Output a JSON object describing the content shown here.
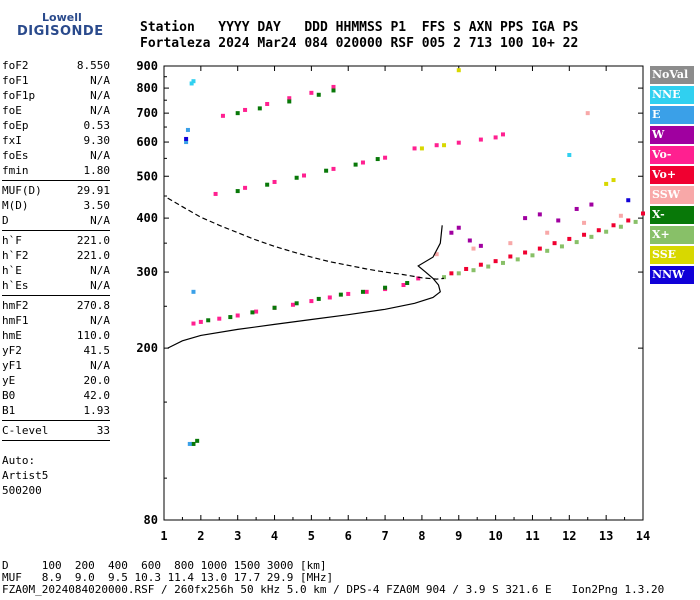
{
  "logo": {
    "line1": "Lowell",
    "line2": "DIGISONDE"
  },
  "header": {
    "labels": "Station   YYYY DAY   DDD HHMMSS P1  FFS S AXN PPS IGA PS",
    "values": "Fortaleza 2024 Mar24 084 020000 RSF 005 2 713 100 10+ 22"
  },
  "params": {
    "group1": [
      {
        "k": "foF2",
        "v": "8.550"
      },
      {
        "k": "foF1",
        "v": "N/A"
      },
      {
        "k": "foF1p",
        "v": "N/A"
      },
      {
        "k": "foE",
        "v": "N/A"
      },
      {
        "k": "foEp",
        "v": "0.53"
      },
      {
        "k": "fxI",
        "v": "9.30"
      },
      {
        "k": "foEs",
        "v": "N/A"
      },
      {
        "k": "fmin",
        "v": "1.80"
      }
    ],
    "group2": [
      {
        "k": "MUF(D)",
        "v": "29.91"
      },
      {
        "k": "M(D)",
        "v": "3.50"
      },
      {
        "k": "D",
        "v": "N/A"
      }
    ],
    "group3": [
      {
        "k": "h`F",
        "v": "221.0"
      },
      {
        "k": "h`F2",
        "v": "221.0"
      },
      {
        "k": "h`E",
        "v": "N/A"
      },
      {
        "k": "h`Es",
        "v": "N/A"
      }
    ],
    "group4": [
      {
        "k": "hmF2",
        "v": "270.8"
      },
      {
        "k": "hmF1",
        "v": "N/A"
      },
      {
        "k": "hmE",
        "v": "110.0"
      },
      {
        "k": "yF2",
        "v": "41.5"
      },
      {
        "k": "yF1",
        "v": "N/A"
      },
      {
        "k": "yE",
        "v": "20.0"
      },
      {
        "k": "B0",
        "v": "42.0"
      },
      {
        "k": "B1",
        "v": "1.93"
      }
    ],
    "group5": [
      {
        "k": "C-level",
        "v": "33"
      }
    ],
    "auto": [
      "Auto:",
      "Artist5",
      "500200"
    ]
  },
  "legend": [
    {
      "label": "NoVal",
      "color": "#8c8c8c"
    },
    {
      "label": "NNE",
      "color": "#30d0f0"
    },
    {
      "label": "E",
      "color": "#3aa0e8"
    },
    {
      "label": "W",
      "color": "#a000a0"
    },
    {
      "label": "Vo-",
      "color": "#ff2090"
    },
    {
      "label": "Vo+",
      "color": "#f00030"
    },
    {
      "label": "SSW",
      "color": "#f8a8a8"
    },
    {
      "label": "X-",
      "color": "#087808"
    },
    {
      "label": "X+",
      "color": "#88c068"
    },
    {
      "label": "SSE",
      "color": "#d8d800"
    },
    {
      "label": "NNW",
      "color": "#1000d8"
    }
  ],
  "footer": {
    "line1": "D     100  200  400  600  800 1000 1500 3000 [km]",
    "line2": "MUF   8.9  9.0  9.5 10.3 11.4 13.0 17.7 29.9 [MHz]",
    "line3": "FZA0M_2024084020000.RSF / 260fx256h 50 kHz 5.0 km / DPS-4 FZA0M 904 / 3.9 S 321.6 E   Ion2Png 1.3.20"
  },
  "chart_data": {
    "type": "scatter",
    "title": "",
    "xlabel": "",
    "ylabel": "",
    "xlim": [
      1,
      14
    ],
    "ylim": [
      80,
      900
    ],
    "yscale": "log",
    "xticks": [
      1,
      2,
      3,
      4,
      5,
      6,
      7,
      8,
      9,
      10,
      11,
      12,
      13,
      14
    ],
    "yticks": [
      80,
      200,
      300,
      400,
      500,
      600,
      700,
      800,
      900
    ],
    "grid": false,
    "legend_placement": "right",
    "series": [
      {
        "name": "Vo-",
        "color": "#ff2090",
        "x": [
          1.8,
          2.0,
          2.5,
          3.0,
          3.5,
          4.0,
          4.5,
          5.0,
          5.5,
          6.0,
          6.5,
          7.0,
          7.5,
          7.9,
          2.4,
          3.2,
          4.0,
          4.8,
          5.6,
          6.4,
          7.0,
          2.6,
          3.2,
          3.8,
          4.4,
          5.0,
          5.6,
          7.8,
          8.4,
          9.0,
          9.6,
          10.0,
          10.2
        ],
        "y": [
          228,
          230,
          234,
          238,
          243,
          248,
          252,
          257,
          262,
          267,
          270,
          274,
          280,
          290,
          455,
          470,
          485,
          502,
          520,
          538,
          552,
          690,
          712,
          735,
          758,
          780,
          805,
          580,
          590,
          598,
          608,
          615,
          625
        ]
      },
      {
        "name": "X-",
        "color": "#087808",
        "x": [
          2.2,
          2.8,
          3.4,
          4.0,
          4.6,
          5.2,
          5.8,
          6.4,
          7.0,
          7.6,
          3.0,
          3.8,
          4.6,
          5.4,
          6.2,
          6.8,
          3.0,
          3.6,
          4.4,
          5.2,
          5.6,
          1.8,
          1.9
        ],
        "y": [
          232,
          236,
          242,
          248,
          254,
          260,
          266,
          270,
          276,
          283,
          462,
          478,
          496,
          515,
          532,
          548,
          700,
          718,
          745,
          772,
          790,
          120,
          122
        ]
      },
      {
        "name": "Vo+",
        "color": "#f00030",
        "x": [
          8.8,
          9.2,
          9.6,
          10.0,
          10.4,
          10.8,
          11.2,
          11.6,
          12.0,
          12.4,
          12.8,
          13.2,
          13.6,
          14.0
        ],
        "y": [
          298,
          305,
          312,
          318,
          326,
          333,
          340,
          350,
          358,
          366,
          375,
          385,
          395,
          410
        ]
      },
      {
        "name": "X+",
        "color": "#88c068",
        "x": [
          8.6,
          9.0,
          9.4,
          9.8,
          10.2,
          10.6,
          11.0,
          11.4,
          11.8,
          12.2,
          12.6,
          13.0,
          13.4,
          13.8
        ],
        "y": [
          292,
          298,
          303,
          309,
          315,
          321,
          328,
          336,
          344,
          352,
          362,
          372,
          382,
          392
        ]
      },
      {
        "name": "W",
        "color": "#a000a0",
        "x": [
          8.8,
          9.0,
          9.3,
          9.6,
          10.8,
          11.2,
          11.7,
          12.2,
          12.6
        ],
        "y": [
          370,
          380,
          355,
          345,
          400,
          408,
          395,
          420,
          430
        ]
      },
      {
        "name": "SSW",
        "color": "#f8a8a8",
        "x": [
          8.4,
          9.4,
          10.4,
          11.4,
          12.4,
          13.4,
          12.5
        ],
        "y": [
          330,
          340,
          350,
          370,
          390,
          405,
          700
        ]
      },
      {
        "name": "SSE",
        "color": "#d8d800",
        "x": [
          8.0,
          8.6,
          9.0,
          13.0,
          13.2
        ],
        "y": [
          580,
          590,
          880,
          480,
          490
        ]
      },
      {
        "name": "E",
        "color": "#3aa0e8",
        "x": [
          1.6,
          1.65,
          1.7,
          1.8
        ],
        "y": [
          600,
          640,
          120,
          270
        ]
      },
      {
        "name": "NNE",
        "color": "#30d0f0",
        "x": [
          1.75,
          1.8,
          12.0
        ],
        "y": [
          820,
          830,
          560
        ]
      },
      {
        "name": "NNW",
        "color": "#1000d8",
        "x": [
          1.6,
          13.6
        ],
        "y": [
          610,
          440
        ]
      }
    ],
    "lines": [
      {
        "name": "profile",
        "style": "solid",
        "x": [
          1.1,
          1.5,
          2.0,
          3.0,
          4.0,
          5.0,
          6.0,
          7.0,
          7.8,
          8.3,
          8.5,
          8.45,
          8.3,
          8.1,
          7.9,
          8.3,
          8.5,
          8.55
        ],
        "y": [
          200,
          208,
          214,
          221,
          227,
          233,
          239,
          246,
          254,
          262,
          270,
          280,
          290,
          300,
          310,
          325,
          350,
          385
        ]
      },
      {
        "name": "trace",
        "style": "dashed",
        "x": [
          1.1,
          1.5,
          2.0,
          2.5,
          3.0,
          3.5,
          4.0,
          4.5,
          5.0,
          5.5,
          6.0,
          6.5,
          7.0,
          7.5,
          8.0,
          8.4,
          8.6
        ],
        "y": [
          445,
          425,
          402,
          385,
          370,
          356,
          344,
          334,
          325,
          317,
          311,
          305,
          300,
          296,
          291,
          289,
          290
        ]
      }
    ]
  }
}
